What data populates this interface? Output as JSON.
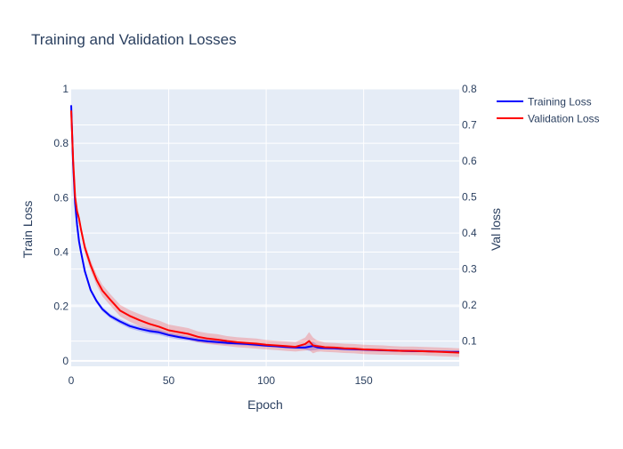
{
  "chart_data": {
    "type": "line",
    "title": "Training and Validation Losses",
    "xlabel": "Epoch",
    "ylabel": "Train Loss",
    "y2label": "Val loss",
    "xlim": [
      0,
      199
    ],
    "ylim": [
      -0.02,
      1.0
    ],
    "y2lim": [
      0.03,
      0.8
    ],
    "x_ticks": [
      0,
      50,
      100,
      150
    ],
    "y_ticks": [
      0,
      0.2,
      0.4,
      0.6,
      0.8,
      1
    ],
    "y2_ticks": [
      0.1,
      0.2,
      0.3,
      0.4,
      0.5,
      0.6,
      0.7,
      0.8
    ],
    "grid": true,
    "legend_position": "top-right",
    "series": [
      {
        "name": "Training Loss",
        "axis": "y",
        "color": "#0000ff",
        "band_color": "rgba(0,0,255,0.2)",
        "x": [
          0,
          1,
          2,
          3,
          4,
          5,
          7,
          10,
          13,
          16,
          20,
          25,
          30,
          35,
          40,
          45,
          50,
          55,
          60,
          65,
          70,
          75,
          80,
          85,
          90,
          95,
          100,
          105,
          110,
          115,
          120,
          122,
          124,
          126,
          128,
          130,
          135,
          140,
          145,
          150,
          155,
          160,
          165,
          170,
          175,
          180,
          185,
          190,
          195,
          199
        ],
        "values": [
          0.94,
          0.72,
          0.58,
          0.5,
          0.44,
          0.4,
          0.33,
          0.26,
          0.22,
          0.19,
          0.165,
          0.145,
          0.128,
          0.118,
          0.11,
          0.105,
          0.095,
          0.088,
          0.082,
          0.076,
          0.072,
          0.069,
          0.066,
          0.064,
          0.062,
          0.059,
          0.056,
          0.054,
          0.051,
          0.049,
          0.049,
          0.052,
          0.055,
          0.05,
          0.048,
          0.047,
          0.046,
          0.044,
          0.043,
          0.041,
          0.04,
          0.039,
          0.038,
          0.037,
          0.036,
          0.036,
          0.035,
          0.034,
          0.033,
          0.033
        ],
        "band": [
          0.005,
          0.005,
          0.005,
          0.005,
          0.005,
          0.006,
          0.006,
          0.007,
          0.008,
          0.008,
          0.008,
          0.009,
          0.009,
          0.009,
          0.01,
          0.01,
          0.009,
          0.009,
          0.008,
          0.008,
          0.007,
          0.007,
          0.006,
          0.006,
          0.006,
          0.006,
          0.005,
          0.005,
          0.005,
          0.005,
          0.008,
          0.015,
          0.016,
          0.01,
          0.006,
          0.005,
          0.005,
          0.005,
          0.005,
          0.004,
          0.004,
          0.004,
          0.004,
          0.004,
          0.004,
          0.004,
          0.004,
          0.004,
          0.004,
          0.004
        ]
      },
      {
        "name": "Validation Loss",
        "axis": "y2",
        "color": "#ff0000",
        "band_color": "rgba(255,0,0,0.2)",
        "x": [
          0,
          1,
          2,
          3,
          4,
          5,
          7,
          10,
          13,
          16,
          20,
          25,
          30,
          35,
          40,
          45,
          50,
          55,
          60,
          65,
          70,
          75,
          80,
          85,
          90,
          95,
          100,
          105,
          110,
          115,
          120,
          122,
          124,
          126,
          128,
          130,
          135,
          140,
          145,
          150,
          155,
          160,
          165,
          170,
          175,
          180,
          185,
          190,
          195,
          199
        ],
        "values": [
          0.74,
          0.6,
          0.5,
          0.46,
          0.44,
          0.41,
          0.36,
          0.31,
          0.27,
          0.24,
          0.215,
          0.185,
          0.17,
          0.158,
          0.148,
          0.14,
          0.13,
          0.125,
          0.12,
          0.112,
          0.107,
          0.104,
          0.1,
          0.097,
          0.095,
          0.093,
          0.09,
          0.088,
          0.086,
          0.084,
          0.092,
          0.1,
          0.088,
          0.086,
          0.085,
          0.083,
          0.082,
          0.08,
          0.079,
          0.077,
          0.076,
          0.075,
          0.074,
          0.073,
          0.073,
          0.072,
          0.071,
          0.07,
          0.069,
          0.068
        ],
        "band": [
          0.01,
          0.01,
          0.01,
          0.01,
          0.012,
          0.012,
          0.013,
          0.014,
          0.015,
          0.016,
          0.016,
          0.016,
          0.016,
          0.017,
          0.017,
          0.017,
          0.016,
          0.016,
          0.016,
          0.015,
          0.015,
          0.015,
          0.014,
          0.014,
          0.014,
          0.014,
          0.013,
          0.013,
          0.013,
          0.013,
          0.018,
          0.025,
          0.022,
          0.016,
          0.014,
          0.013,
          0.013,
          0.013,
          0.013,
          0.013,
          0.013,
          0.013,
          0.012,
          0.012,
          0.012,
          0.012,
          0.012,
          0.012,
          0.012,
          0.012
        ]
      }
    ]
  }
}
